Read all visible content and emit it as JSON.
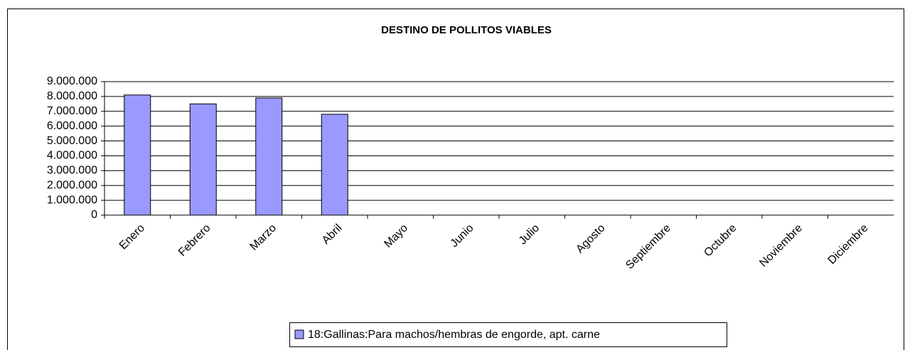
{
  "chart_data": {
    "type": "bar",
    "title": "DESTINO DE POLLITOS VIABLES",
    "categories": [
      "Enero",
      "Febrero",
      "Marzo",
      "Abril",
      "Mayo",
      "Junio",
      "Julio",
      "Agosto",
      "Septiembre",
      "Octubre",
      "Noviembre",
      "Diciembre"
    ],
    "series": [
      {
        "name": "18:Gallinas:Para machos/hembras de engorde, apt. carne",
        "color": "#9999ff",
        "values": [
          8100000,
          7500000,
          7900000,
          6800000,
          null,
          null,
          null,
          null,
          null,
          null,
          null,
          null
        ]
      }
    ],
    "ylim": [
      0,
      9000000
    ],
    "yticks": [
      0,
      {
        "value": 1000000,
        "label": "1.000.000"
      },
      {
        "value": 2000000,
        "label": "2.000.000"
      },
      {
        "value": 3000000,
        "label": "3.000.000"
      },
      {
        "value": 4000000,
        "label": "4.000.000"
      },
      {
        "value": 5000000,
        "label": "5.000.000"
      },
      {
        "value": 6000000,
        "label": "6.000.000"
      },
      {
        "value": 7000000,
        "label": "7.000.000"
      },
      {
        "value": 8000000,
        "label": "8.000.000"
      },
      {
        "value": 9000000,
        "label": "9.000.000"
      }
    ],
    "grid": true,
    "legend": "bottom"
  }
}
